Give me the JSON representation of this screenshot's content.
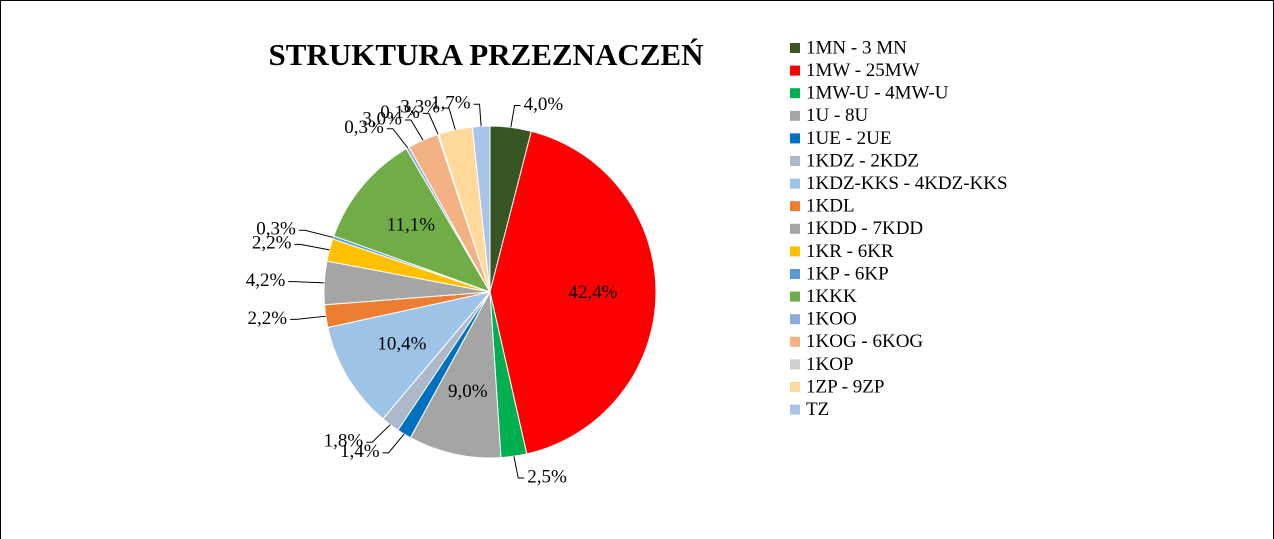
{
  "chart_data": {
    "type": "pie",
    "title": "STRUKTURA PRZEZNACZEŃ",
    "categories": [
      "1MN - 3 MN",
      "1MW - 25MW",
      "1MW-U - 4MW-U",
      "1U - 8U",
      "1UE - 2UE",
      "1KDZ - 2KDZ",
      "1KDZ-KKS - 4KDZ-KKS",
      "1KDL",
      "1KDD - 7KDD",
      "1KR - 6KR",
      "1KP - 6KP",
      "1KKK",
      "1KOO",
      "1KOG - 6KOG",
      "1KOP",
      "1ZP - 9ZP",
      "TZ"
    ],
    "values": [
      4.0,
      42.4,
      2.5,
      9.0,
      1.4,
      1.8,
      10.4,
      2.2,
      4.2,
      2.2,
      0.3,
      11.1,
      0.3,
      3.0,
      0.1,
      3.3,
      1.7
    ],
    "value_labels": [
      "4,0%",
      "42,4%",
      "2,5%",
      "9,0%",
      "1,4%",
      "1,8%",
      "10,4%",
      "2,2%",
      "4,2%",
      "2,2%",
      "0,3%",
      "11,1%",
      "0,3%",
      "3,0%",
      "0,1%",
      "3,3%",
      "1,7%"
    ],
    "colors": [
      "#375623",
      "#ff0000",
      "#00b050",
      "#a5a5a5",
      "#0070c0",
      "#adb9ca",
      "#9dc3e6",
      "#ed7d31",
      "#a5a5a5",
      "#ffc000",
      "#5b9bd5",
      "#70ad47",
      "#8faadc",
      "#f4b183",
      "#d0cece",
      "#ffd999",
      "#a9c4eb"
    ],
    "legend": "right"
  }
}
